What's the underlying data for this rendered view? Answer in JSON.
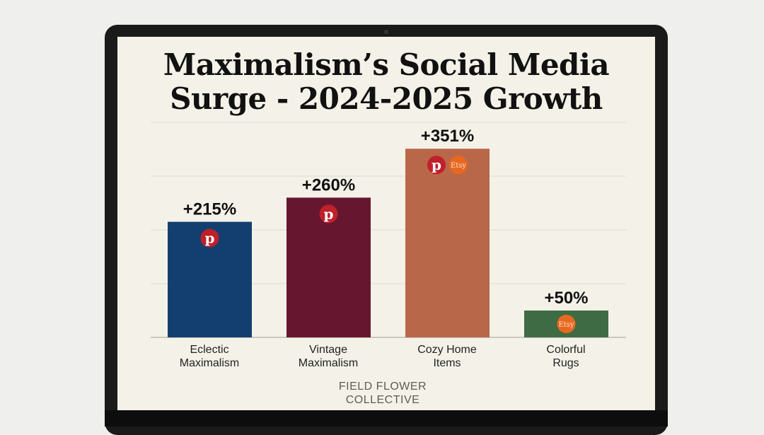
{
  "chart_data": {
    "type": "bar",
    "title": "Maximalism’s Social Media Surge - 2024-2025 Growth",
    "title_lines": [
      "Maximalism’s Social Media",
      "Surge - 2024-2025 Growth"
    ],
    "categories": [
      "Eclectic Maximalism",
      "Vintage Maximalism",
      "Cozy Home Items",
      "Colorful Rugs"
    ],
    "category_lines": [
      [
        "Eclectic",
        "Maximalism"
      ],
      [
        "Vintage",
        "Maximalism"
      ],
      [
        "Cozy Home",
        "Items"
      ],
      [
        "Colorful",
        "Rugs"
      ]
    ],
    "values": [
      215,
      260,
      351,
      50
    ],
    "data_labels": [
      "+215%",
      "+260%",
      "+351%",
      "+50%"
    ],
    "colors": [
      "#123f6f",
      "#66162f",
      "#b96749",
      "#3f6b44"
    ],
    "platform_icons": [
      [
        "pinterest"
      ],
      [
        "pinterest"
      ],
      [
        "pinterest",
        "etsy"
      ],
      [
        "etsy"
      ]
    ],
    "etsy_label": "Etsy",
    "ylim": [
      0,
      400
    ],
    "grid": true,
    "xlabel": "",
    "ylabel": ""
  },
  "brand": {
    "line1": "FIELD FLOWER",
    "line2": "COLLECTIVE"
  }
}
